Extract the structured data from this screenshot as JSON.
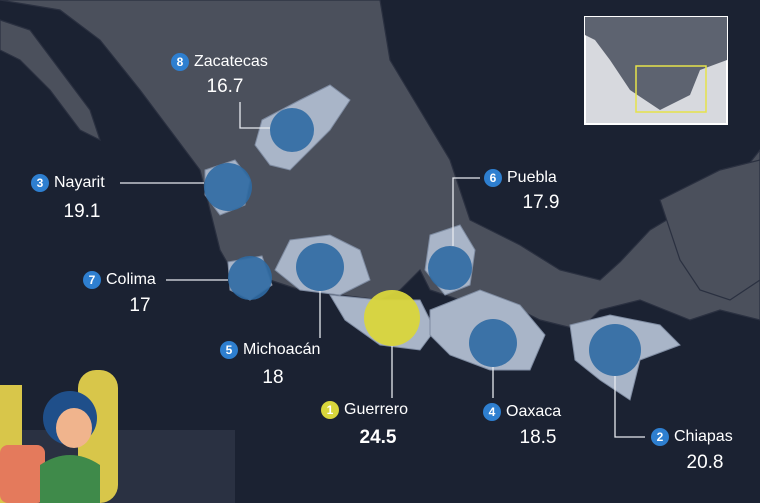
{
  "states": [
    {
      "rank": 8,
      "name": "Zacatecas",
      "value": 16.7
    },
    {
      "rank": 3,
      "name": "Nayarit",
      "value": 19.1
    },
    {
      "rank": 6,
      "name": "Puebla",
      "value": 17.9
    },
    {
      "rank": 7,
      "name": "Colima",
      "value": 17.0
    },
    {
      "rank": 5,
      "name": "Michoacán",
      "value": 18.0
    },
    {
      "rank": 1,
      "name": "Guerrero",
      "value": 24.5
    },
    {
      "rank": 4,
      "name": "Oaxaca",
      "value": 18.5
    },
    {
      "rank": 2,
      "name": "Chiapas",
      "value": 20.8
    }
  ]
}
